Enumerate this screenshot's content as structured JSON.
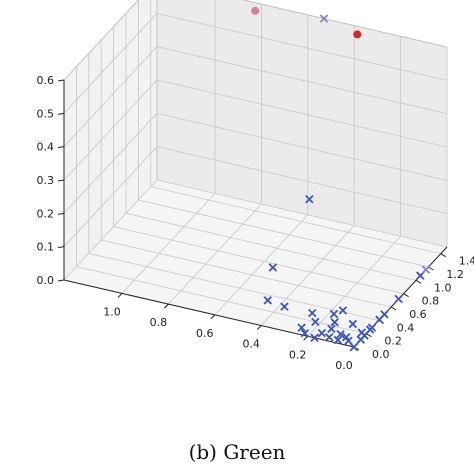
{
  "caption": "(b) Green",
  "chart_data": {
    "type": "scatter",
    "projection": "3d",
    "grid": true,
    "title": "",
    "xlabel": "",
    "ylabel": "",
    "zlabel": "",
    "x_ticks": [
      "1.0",
      "0.8",
      "0.6",
      "0.4",
      "0.2",
      "0.0"
    ],
    "y_ticks": [
      "0.0",
      "0.2",
      "0.4",
      "0.6",
      "0.8",
      "1.0",
      "1.2",
      "1.4"
    ],
    "z_ticks": [
      "0.0",
      "0.1",
      "0.2",
      "0.3",
      "0.4",
      "0.5",
      "0.6"
    ],
    "xlim": [
      0,
      1.25
    ],
    "ylim": [
      0,
      1.5
    ],
    "zlim": [
      0,
      0.6
    ],
    "series": [
      {
        "marker": "circle",
        "color": "#d62728",
        "points": [
          {
            "x": 0.36,
            "y": 1.4,
            "z": 0.6,
            "color": "#d62728"
          },
          {
            "x": 0.8,
            "y": 1.4,
            "z": 0.6,
            "color": "#d6809a"
          }
        ]
      },
      {
        "marker": "x",
        "color": "#3a55c4",
        "points": [
          {
            "x": 0.53,
            "y": 1.5,
            "z": 0.6,
            "color": "#7c86d4"
          },
          {
            "x": 0.58,
            "y": 1.45,
            "z": 0.06
          },
          {
            "x": 0.0,
            "y": 0.72,
            "z": 0.0
          },
          {
            "x": 0.0,
            "y": 1.07,
            "z": 0.0
          },
          {
            "x": 0.0,
            "y": 1.16,
            "z": 0.0,
            "color": "#7c86d4"
          },
          {
            "x": 0.0,
            "y": 0.49,
            "z": 0.0
          },
          {
            "x": 0.0,
            "y": 0.41,
            "z": 0.0
          },
          {
            "x": 0.0,
            "y": 0.29,
            "z": 0.0
          },
          {
            "x": 0.0,
            "y": 0.17,
            "z": 0.0
          },
          {
            "x": 0.0,
            "y": 0.11,
            "z": 0.0
          },
          {
            "x": 0.04,
            "y": 0.06,
            "z": 0.0
          },
          {
            "x": 0.09,
            "y": 0.12,
            "z": 0.0
          },
          {
            "x": 0.08,
            "y": 0.04,
            "z": 0.0
          },
          {
            "x": 0.16,
            "y": 0.08,
            "z": 0.0
          },
          {
            "x": 0.17,
            "y": 0.0,
            "z": 0.0
          },
          {
            "x": 0.14,
            "y": 0.16,
            "z": 0.0
          },
          {
            "x": 0.0,
            "y": 0.26,
            "z": 0.0
          },
          {
            "x": 0.02,
            "y": 0.2,
            "z": 0.0
          },
          {
            "x": 0.08,
            "y": 0.28,
            "z": 0.0
          },
          {
            "x": 0.15,
            "y": 0.25,
            "z": 0.0
          },
          {
            "x": 0.22,
            "y": 0.2,
            "z": 0.0
          },
          {
            "x": 0.18,
            "y": 0.35,
            "z": 0.0
          },
          {
            "x": 0.06,
            "y": 0.1,
            "z": 0.0
          },
          {
            "x": 0.25,
            "y": 0.09,
            "z": 0.0
          },
          {
            "x": 0.16,
            "y": 0.42,
            "z": 0.0
          },
          {
            "x": 0.26,
            "y": 0.3,
            "z": 0.0
          },
          {
            "x": 0.0,
            "y": 0.0,
            "z": 0.0
          },
          {
            "x": 0.22,
            "y": 0.03,
            "z": 0.0
          },
          {
            "x": 0.38,
            "y": 0.3,
            "z": 0.0
          },
          {
            "x": 0.46,
            "y": 0.33,
            "z": 0.0
          },
          {
            "x": 0.55,
            "y": 0.75,
            "z": 0.0
          },
          {
            "x": 0.12,
            "y": 0.05,
            "z": 0.0
          }
        ]
      }
    ]
  }
}
